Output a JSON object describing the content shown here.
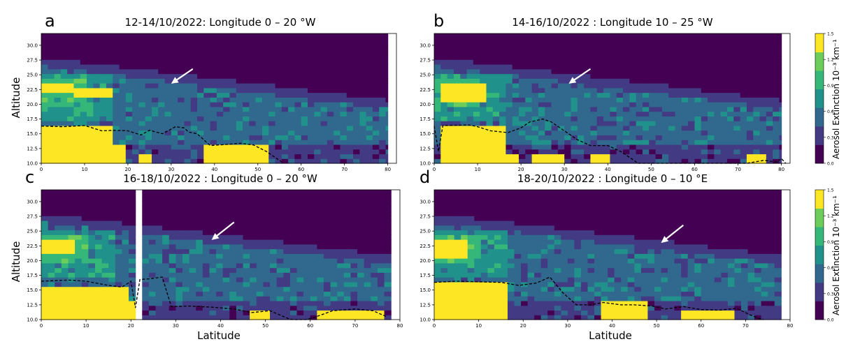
{
  "chart_data": {
    "type": "heatmap",
    "shared": {
      "ylabel": "Altitude",
      "xlabel": "Latitude",
      "colorbar_label": "Aerosol Extinction 10⁻³ km⁻¹",
      "colorbar_range": [
        0.0,
        1.5
      ],
      "colorbar_ticks": [
        "0.0",
        "0.3",
        "0.6",
        "0.9",
        "1.2",
        "1.5"
      ],
      "colormap": [
        "#440154",
        "#433a84",
        "#31688e",
        "#21918c",
        "#35b779",
        "#6ccd5a",
        "#fde725"
      ],
      "ylim": [
        10.0,
        32.0
      ],
      "yticks": [
        "10.0",
        "12.5",
        "15.0",
        "17.5",
        "20.0",
        "22.5",
        "25.0",
        "27.5",
        "30.0"
      ],
      "arrow_color": "#ffffff",
      "tropopause_style": "black dashed"
    },
    "panels": [
      {
        "letter": "a",
        "title": "12-14/10/2022: Longitude 0 – 20 °W",
        "xlim": [
          0,
          82
        ],
        "xticks": [
          "0",
          "10",
          "20",
          "30",
          "40",
          "50",
          "60",
          "70",
          "80"
        ],
        "data_xmax": 80,
        "dusty": [
          [
            0,
            8,
            22,
            24
          ],
          [
            8,
            16,
            21,
            23
          ],
          [
            0,
            16,
            10,
            16.5
          ],
          [
            16,
            19,
            10,
            13.5
          ],
          [
            22,
            26,
            10,
            12
          ],
          [
            38,
            53,
            10,
            13
          ]
        ],
        "tropopause": [
          [
            0,
            16.3
          ],
          [
            5,
            16.2
          ],
          [
            10,
            16.4
          ],
          [
            14,
            15.5
          ],
          [
            17,
            15.6
          ],
          [
            20,
            15.5
          ],
          [
            23,
            14.8
          ],
          [
            25,
            15.6
          ],
          [
            28,
            15.0
          ],
          [
            31,
            16.2
          ],
          [
            33,
            16.0
          ],
          [
            34,
            15.3
          ],
          [
            36,
            15.0
          ],
          [
            39,
            13.0
          ],
          [
            43,
            13.2
          ],
          [
            46,
            13.4
          ],
          [
            49,
            13.1
          ],
          [
            52,
            12.0
          ],
          [
            54,
            11.0
          ],
          [
            56,
            10.0
          ]
        ],
        "arrow": {
          "from": [
            35,
            26.0
          ],
          "to": [
            30,
            23.5
          ]
        }
      },
      {
        "letter": "b",
        "title": "14-16/10/2022 : Longitude 10 – 25 °W",
        "xlim": [
          0,
          82
        ],
        "xticks": [
          "0",
          "10",
          "20",
          "30",
          "40",
          "50",
          "60",
          "70",
          "80"
        ],
        "data_xmax": 80,
        "gaps": [
          [
            1,
            2
          ]
        ],
        "dusty": [
          [
            2,
            12,
            20.5,
            24
          ],
          [
            2,
            17,
            10,
            16.5
          ],
          [
            17,
            19,
            10,
            12
          ],
          [
            22,
            30,
            10,
            12
          ],
          [
            36,
            41,
            10,
            12
          ],
          [
            72,
            77,
            10,
            11.5
          ]
        ],
        "tropopause": [
          [
            0,
            16.3
          ],
          [
            1,
            12.0
          ],
          [
            2,
            16.4
          ],
          [
            8,
            16.5
          ],
          [
            10,
            16.2
          ],
          [
            13,
            15.5
          ],
          [
            17,
            15.2
          ],
          [
            20,
            16.0
          ],
          [
            22,
            17.0
          ],
          [
            25,
            17.5
          ],
          [
            27,
            17.0
          ],
          [
            30,
            15.5
          ],
          [
            33,
            14.0
          ],
          [
            36,
            13.0
          ],
          [
            40,
            13.0
          ],
          [
            43,
            12.0
          ],
          [
            45,
            11.0
          ],
          [
            47,
            10.0
          ],
          [
            72,
            10.0
          ],
          [
            76,
            10.5
          ],
          [
            79,
            10.2
          ],
          [
            80,
            10.8
          ],
          [
            81,
            10.0
          ]
        ],
        "arrow": {
          "from": [
            36,
            26.0
          ],
          "to": [
            31,
            23.5
          ]
        }
      },
      {
        "letter": "c",
        "title": "16-18/10/2022 : Longitude 0 – 20 °W",
        "xlim": [
          0,
          80
        ],
        "xticks": [
          "0",
          "10",
          "20",
          "30",
          "40",
          "50",
          "60",
          "70",
          "80"
        ],
        "data_xmax": 78,
        "gaps": [
          [
            21,
            22
          ]
        ],
        "dusty": [
          [
            0,
            8,
            21,
            24
          ],
          [
            0,
            19,
            10,
            16
          ],
          [
            19,
            21,
            10,
            13
          ],
          [
            28,
            29,
            10,
            12
          ],
          [
            47,
            51,
            10,
            11.5
          ],
          [
            62,
            76,
            10,
            12
          ]
        ],
        "tropopause": [
          [
            0,
            16.5
          ],
          [
            6,
            16.7
          ],
          [
            10,
            16.5
          ],
          [
            15,
            15.8
          ],
          [
            18,
            15.5
          ],
          [
            20,
            16.5
          ],
          [
            21,
            12.0
          ],
          [
            22,
            16.8
          ],
          [
            24,
            16.9
          ],
          [
            27,
            17.2
          ],
          [
            29,
            12.2
          ],
          [
            33,
            12.3
          ],
          [
            38,
            12.1
          ],
          [
            43,
            11.8
          ],
          [
            47,
            11.2
          ],
          [
            51,
            11.5
          ],
          [
            55,
            10.2
          ],
          [
            56,
            10.0
          ],
          [
            59,
            10.0
          ],
          [
            61,
            10.4
          ],
          [
            65,
            11.5
          ],
          [
            70,
            11.8
          ],
          [
            74,
            11.5
          ],
          [
            77,
            10.5
          ]
        ],
        "arrow": {
          "from": [
            43,
            26.5
          ],
          "to": [
            38,
            23.5
          ]
        }
      },
      {
        "letter": "d",
        "title": "18-20/10/2022 : Longitude 0 – 10 °E",
        "xlim": [
          0,
          80
        ],
        "xticks": [
          "0",
          "10",
          "20",
          "30",
          "40",
          "50",
          "60",
          "70",
          "80"
        ],
        "data_xmax": 78,
        "dusty": [
          [
            0,
            8,
            20.5,
            24
          ],
          [
            0,
            17,
            10,
            16.5
          ],
          [
            38,
            48,
            10,
            13
          ],
          [
            55,
            68,
            10,
            12
          ]
        ],
        "tropopause": [
          [
            0,
            16.3
          ],
          [
            5,
            16.5
          ],
          [
            10,
            16.4
          ],
          [
            15,
            16.3
          ],
          [
            19,
            15.8
          ],
          [
            23,
            16.2
          ],
          [
            26,
            17.2
          ],
          [
            29,
            14.5
          ],
          [
            32,
            12.5
          ],
          [
            35,
            12.5
          ],
          [
            38,
            12.9
          ],
          [
            42,
            12.5
          ],
          [
            45,
            12.5
          ],
          [
            49,
            12.3
          ],
          [
            52,
            11.8
          ],
          [
            56,
            12.2
          ],
          [
            60,
            11.7
          ],
          [
            64,
            11.6
          ],
          [
            68,
            11.9
          ],
          [
            71,
            10.8
          ],
          [
            73,
            10.2
          ],
          [
            74,
            10.0
          ]
        ],
        "arrow": {
          "from": [
            56,
            26.0
          ],
          "to": [
            51,
            23.0
          ]
        }
      }
    ]
  }
}
